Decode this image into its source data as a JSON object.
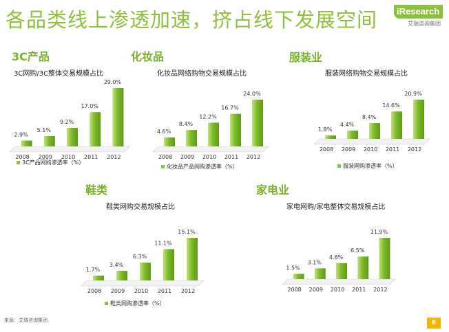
{
  "header": {
    "title": "各品类线上渗透加速，挤占线下发展空间",
    "logo_text": "iResearch",
    "logo_sub": "艾瑞咨询集团"
  },
  "sections": [
    "3C产品",
    "化妆品",
    "服装业",
    "鞋类",
    "家电业"
  ],
  "footer": {
    "source": "来源：艾瑞咨询集团.",
    "page_number": "8"
  },
  "colors": {
    "accent": "#8ec13b",
    "bar": "#7cba2a",
    "bar_light": "#c4e27a",
    "title": "#8ec13b"
  },
  "chart_data": [
    {
      "type": "bar",
      "title": "3C网购/3C整体交易规模占比",
      "categories": [
        "2008",
        "2009",
        "2010",
        "2011",
        "2012"
      ],
      "series": [
        {
          "name": "3C产品网购渗透率（%）",
          "values": [
            2.9,
            5.1,
            9.2,
            17.0,
            29.0
          ]
        }
      ],
      "value_labels": [
        "2.9%",
        "5.1%",
        "9.2%",
        "17.0%",
        "29.0%"
      ],
      "legend_position": "bottom-left"
    },
    {
      "type": "bar",
      "title": "化妆品网络购物交易规模占比",
      "categories": [
        "2008",
        "2009",
        "2010",
        "2011",
        "2012"
      ],
      "series": [
        {
          "name": "化妆品产品网购渗透率（%）",
          "values": [
            4.6,
            8.4,
            12.2,
            16.7,
            24.0
          ]
        }
      ],
      "value_labels": [
        "4.6%",
        "8.4%",
        "12.2%",
        "16.7%",
        "24.0%"
      ],
      "legend_position": "bottom-left"
    },
    {
      "type": "bar",
      "title": "服装网络购物交易规模占比",
      "categories": [
        "2008",
        "2009",
        "2010",
        "2011",
        "2012"
      ],
      "series": [
        {
          "name": "服装网购渗透率（%）",
          "values": [
            1.8,
            4.4,
            8.4,
            14.6,
            20.9
          ]
        }
      ],
      "value_labels": [
        "1.8%",
        "4.4%",
        "8.4%",
        "14.6%",
        "20.9%"
      ],
      "legend_position": "bottom-left"
    },
    {
      "type": "bar",
      "title": "鞋类网购交易规模占比",
      "categories": [
        "2008",
        "2009",
        "2010",
        "2011",
        "2012"
      ],
      "series": [
        {
          "name": "鞋类网购渗透率（%）",
          "values": [
            1.7,
            3.4,
            6.3,
            11.1,
            15.1
          ]
        }
      ],
      "value_labels": [
        "1.7%",
        "3.4%",
        "6.3%",
        "11.1%",
        "15.1%"
      ],
      "legend_position": "bottom-left"
    },
    {
      "type": "bar",
      "title": "家电网购/家电整体交易规模占比",
      "categories": [
        "2008",
        "2009",
        "2010",
        "2011",
        "2012"
      ],
      "series": [
        {
          "name": "",
          "values": [
            1.5,
            3.1,
            4.6,
            6.5,
            11.9
          ]
        }
      ],
      "value_labels": [
        "1.5%",
        "3.1%",
        "4.6%",
        "6.5%",
        "11.9%"
      ],
      "legend_position": "none"
    }
  ]
}
